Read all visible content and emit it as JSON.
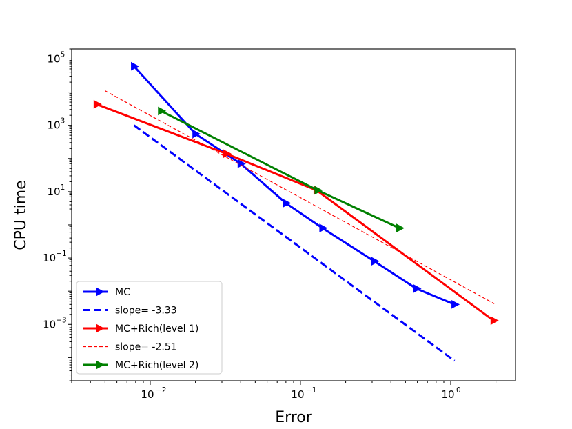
{
  "chart_data": {
    "type": "line",
    "xlabel": "Error",
    "ylabel": "CPU time",
    "xscale": "log",
    "yscale": "log",
    "xlim": [
      0.003,
      2.7
    ],
    "ylim": [
      2e-05,
      200000
    ],
    "grid": false,
    "legend_position": "lower-left",
    "x_ticks": [
      {
        "value": 0.01,
        "base": "10",
        "exp": "−2"
      },
      {
        "value": 0.1,
        "base": "10",
        "exp": "−1"
      },
      {
        "value": 1,
        "base": "10",
        "exp": "0"
      }
    ],
    "y_ticks": [
      {
        "value": 100000,
        "base": "10",
        "exp": "5"
      },
      {
        "value": 1000,
        "base": "10",
        "exp": "3"
      },
      {
        "value": 10,
        "base": "10",
        "exp": "1"
      },
      {
        "value": 0.1,
        "base": "10",
        "exp": "−1"
      },
      {
        "value": 0.001,
        "base": "10",
        "exp": "−3"
      }
    ],
    "series": [
      {
        "name": "MC",
        "color": "#0000ff",
        "style": "solid",
        "marker": "triangle-right",
        "x": [
          0.0078,
          0.02,
          0.04,
          0.08,
          0.14,
          0.31,
          0.59,
          1.06
        ],
        "y": [
          60000,
          550,
          70,
          4.5,
          0.8,
          0.08,
          0.012,
          0.004
        ]
      },
      {
        "name": "slope= -3.33",
        "color": "#0000ff",
        "style": "dashed-thick",
        "marker": "none",
        "x": [
          0.0078,
          1.06
        ],
        "y": [
          1000,
          8e-05
        ]
      },
      {
        "name": "MC+Rich(level 1)",
        "color": "#ff0000",
        "style": "solid",
        "marker": "triangle-right",
        "x": [
          0.0044,
          0.032,
          0.128,
          1.93
        ],
        "y": [
          4300,
          140,
          11,
          0.0013
        ]
      },
      {
        "name": "slope= -2.51",
        "color": "#ff0000",
        "style": "dashed-thin",
        "marker": "none",
        "x": [
          0.005,
          1.95
        ],
        "y": [
          11000,
          0.0042
        ]
      },
      {
        "name": "MC+Rich(level 2)",
        "color": "#008000",
        "style": "solid",
        "marker": "triangle-right",
        "x": [
          0.0118,
          0.13,
          0.455
        ],
        "y": [
          2700,
          11,
          0.8
        ]
      }
    ]
  }
}
